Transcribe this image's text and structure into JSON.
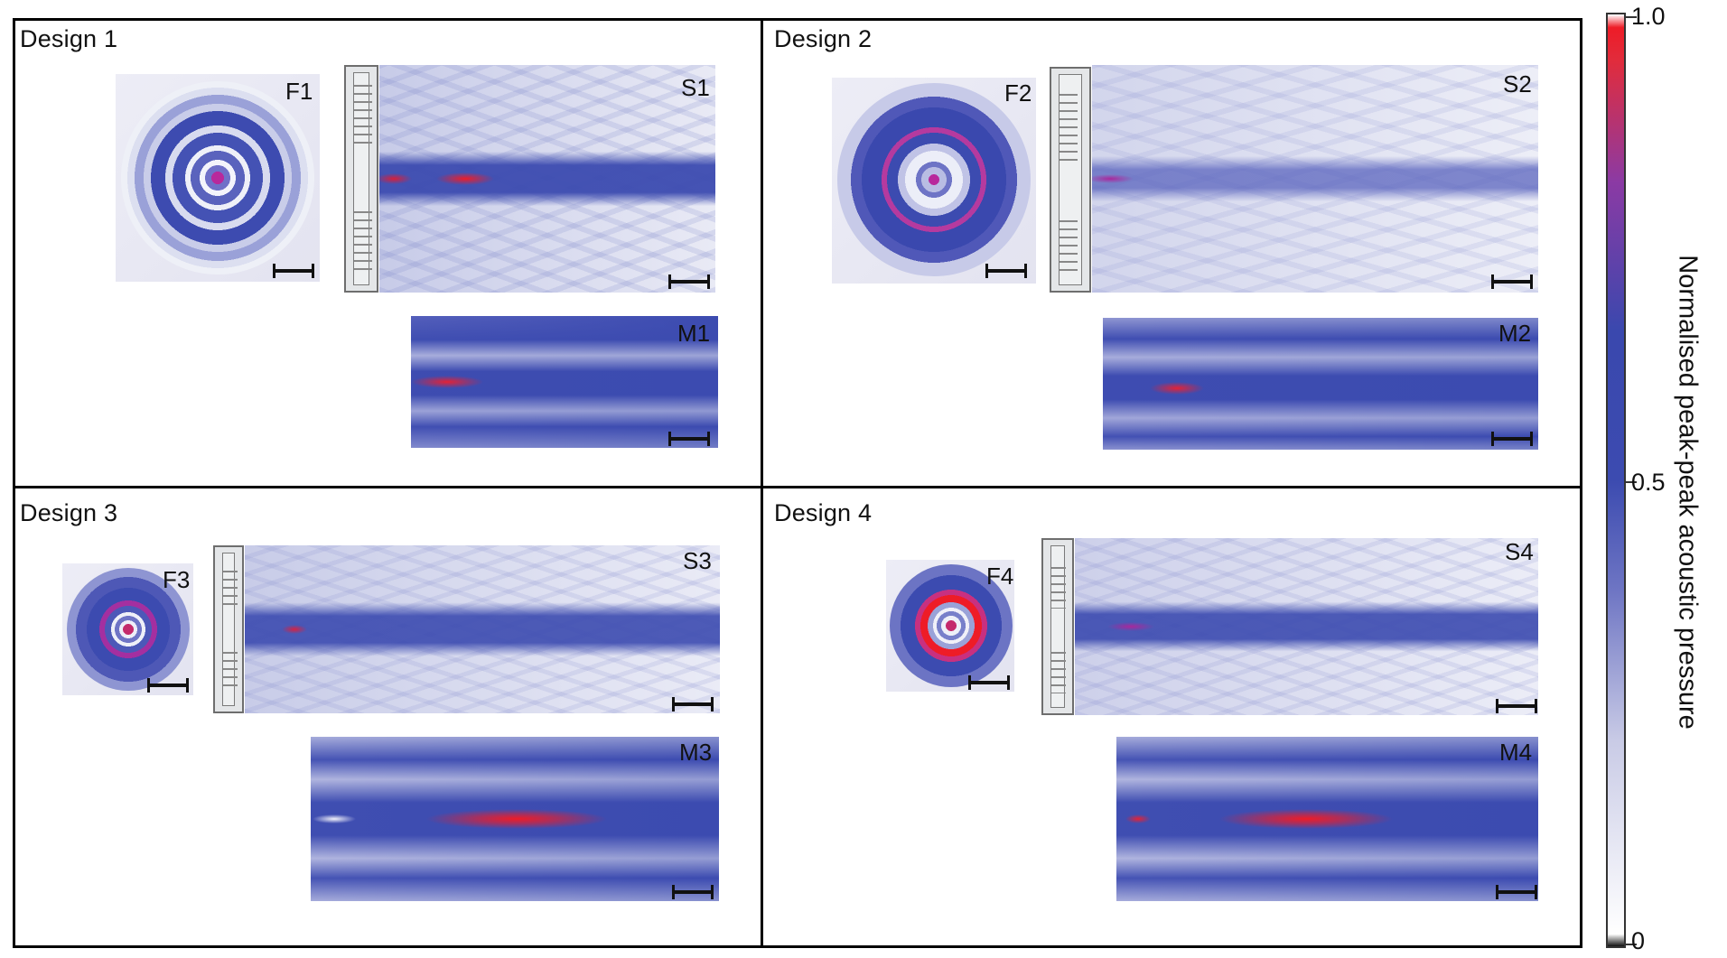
{
  "colors": {
    "low": "#ffffff",
    "mid": "#3c4bb0",
    "high": "#ee1c27"
  },
  "panels": [
    {
      "title": "Design 1",
      "f_label": "F1",
      "s_label": "S1",
      "m_label": "M1"
    },
    {
      "title": "Design 2",
      "f_label": "F2",
      "s_label": "S2",
      "m_label": "M2"
    },
    {
      "title": "Design 3",
      "f_label": "F3",
      "s_label": "S3",
      "m_label": "M3"
    },
    {
      "title": "Design 4",
      "f_label": "F4",
      "s_label": "S4",
      "m_label": "M4"
    }
  ],
  "colorbar": {
    "title": "Normalised peak-peak acoustic pressure",
    "ticks": [
      "1.0",
      "0.5",
      "0"
    ]
  }
}
